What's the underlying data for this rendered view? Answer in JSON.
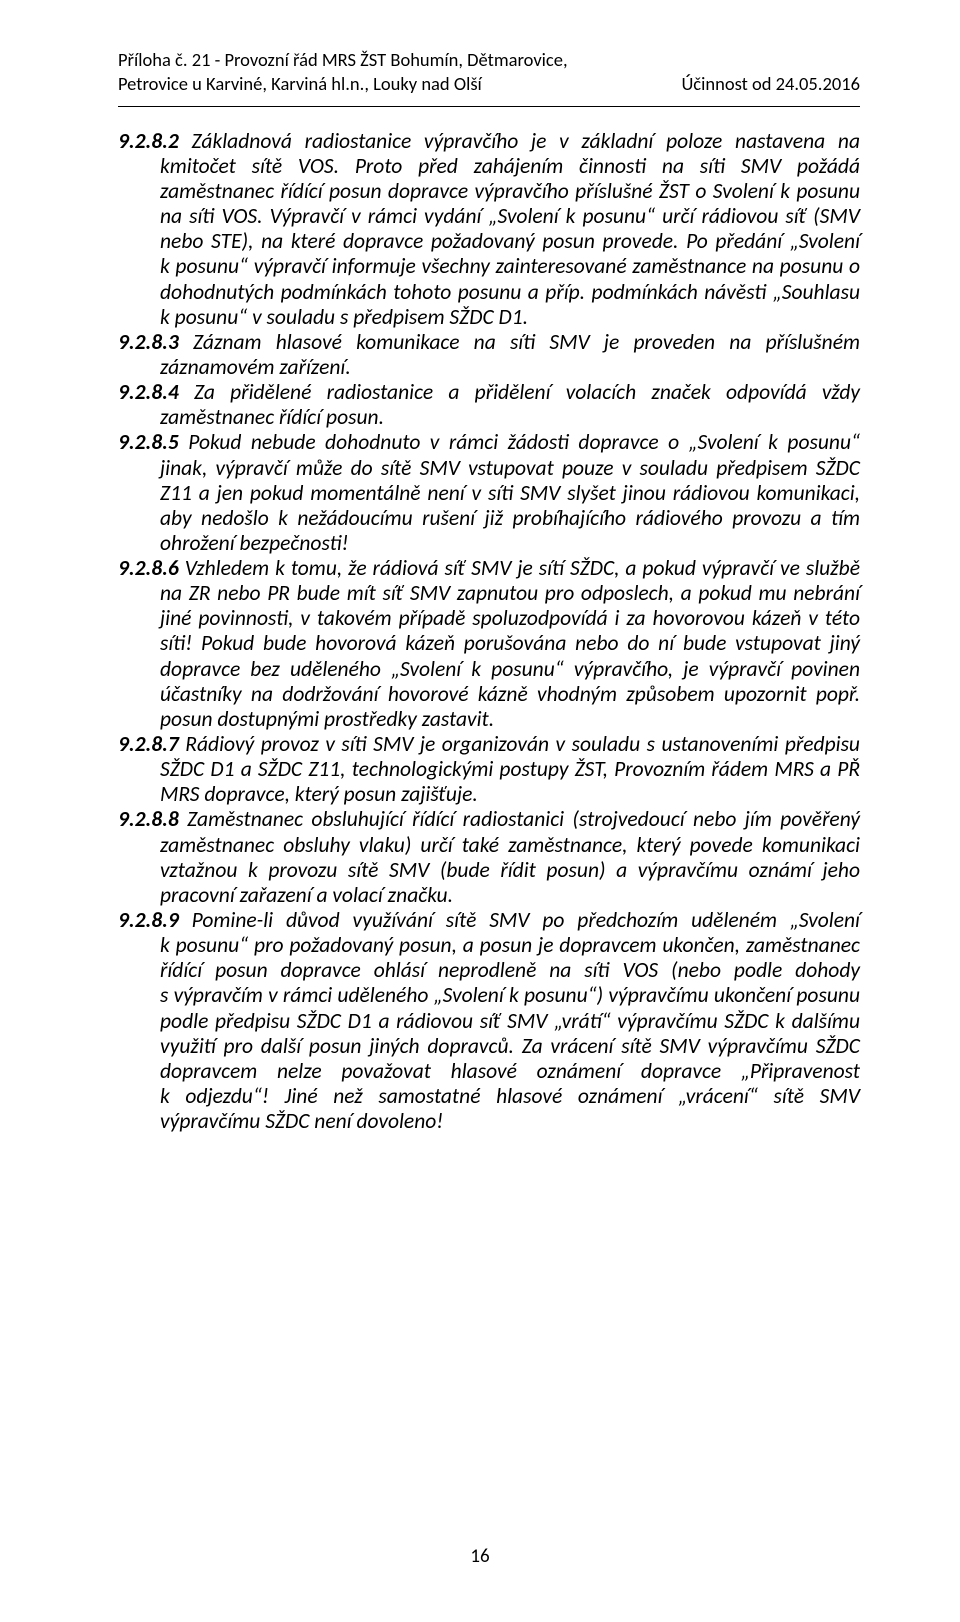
{
  "header": {
    "left_line1": "Příloha č. 21 - Provozní řád MRS ŽST Bohumín, Dětmarovice,",
    "left_line2": "Petrovice u Karviné, Karviná hl.n., Louky nad Olší",
    "right": "Účinnost od 24.05.2016"
  },
  "body": {
    "p1_num": "9.2.8.2",
    "p1": " Základnová radiostanice výpravčího je v základní poloze nastavena na kmitočet sítě VOS. Proto před zahájením činnosti na síti SMV požádá zaměstnanec řídící posun dopravce výpravčího příslušné ŽST o Svolení k posunu na síti VOS. Výpravčí v rámci vydání „Svolení k posunu“ určí rádiovou síť (SMV nebo STE), na které dopravce požadovaný posun provede. Po předání „Svolení k posunu“ výpravčí informuje všechny zainteresované zaměstnance na posunu o dohodnutých podmínkách tohoto posunu a příp. podmínkách návěsti „Souhlasu k posunu“ v souladu s předpisem SŽDC D1.",
    "p2_num": "9.2.8.3",
    "p2": " Záznam hlasové komunikace na síti SMV je proveden na příslušném záznamovém zařízení.",
    "p3_num": "9.2.8.4",
    "p3": " Za přidělené radiostanice a přidělení volacích značek odpovídá vždy zaměstnanec řídící posun.",
    "p4_num": "9.2.8.5",
    "p4": " Pokud nebude dohodnuto v rámci žádosti dopravce o „Svolení k posunu“ jinak, výpravčí může do sítě SMV vstupovat pouze v souladu předpisem SŽDC Z11 a jen pokud momentálně není v síti SMV slyšet jinou rádiovou komunikaci, aby nedošlo k nežádoucímu rušení již probíhajícího rádiového provozu a tím ohrožení bezpečnosti!",
    "p5_num": "9.2.8.6",
    "p5": " Vzhledem k tomu, že rádiová síť SMV je sítí SŽDC, a pokud výpravčí ve službě na ZR nebo PR bude mít síť SMV zapnutou pro odposlech, a pokud mu nebrání jiné povinnosti, v takovém případě spoluzodpovídá i za hovorovou kázeň v této síti! Pokud bude hovorová kázeň porušována nebo do ní bude vstupovat jiný dopravce bez uděleného „Svolení k posunu“ výpravčího, je výpravčí povinen účastníky na dodržování hovorové kázně vhodným způsobem upozornit popř. posun dostupnými prostředky zastavit.",
    "p6_num": "9.2.8.7",
    "p6": " Rádiový provoz v síti SMV je organizován v souladu s ustanoveními předpisu SŽDC D1 a SŽDC Z11, technologickými postupy ŽST, Provozním řádem MRS a PŘ MRS dopravce, který posun zajišťuje.",
    "p7_num": "9.2.8.8",
    "p7": " Zaměstnanec obsluhující řídící radiostanici (strojvedoucí nebo jím pověřený zaměstnanec obsluhy vlaku) určí také zaměstnance, který povede komunikaci vztažnou k provozu sítě SMV (bude řídit posun) a výpravčímu oznámí jeho pracovní zařazení a volací značku.",
    "p8_num": "9.2.8.9",
    "p8": " Pomine-li důvod využívání sítě SMV po předchozím uděleném „Svolení k posunu“ pro požadovaný posun, a posun je dopravcem ukončen, zaměstnanec řídící posun dopravce ohlásí neprodleně na síti VOS (nebo podle dohody s výpravčím v rámci uděleného „Svolení k posunu“) výpravčímu ukončení posunu podle předpisu SŽDC D1 a rádiovou síť SMV „vrátí“ výpravčímu SŽDC k dalšímu využití pro další posun jiných dopravců. Za vrácení sítě SMV výpravčímu SŽDC dopravcem nelze považovat hlasové oznámení dopravce „Připravenost k odjezdu“! Jiné než samostatné hlasové oznámení „vrácení“ sítě SMV výpravčímu SŽDC není dovoleno!"
  },
  "footer": {
    "page_number": "16"
  }
}
